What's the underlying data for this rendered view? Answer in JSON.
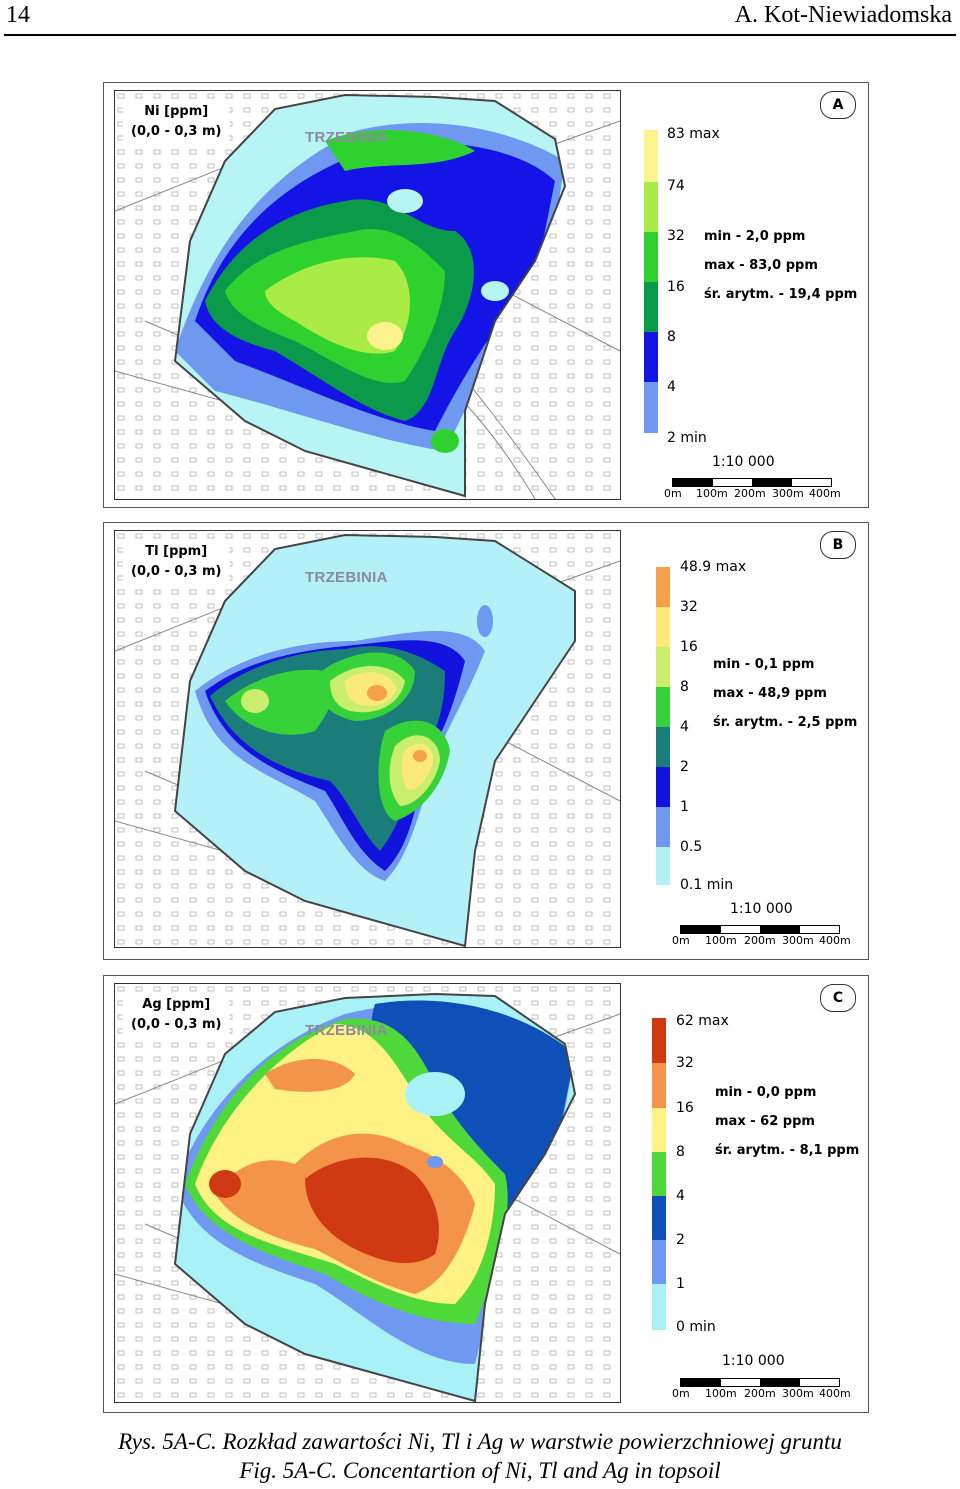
{
  "header": {
    "page_number": "14",
    "author": "A. Kot-Niewiadomska"
  },
  "map_labels": {
    "town": "TRZEBINIA"
  },
  "panels": [
    {
      "id": "A",
      "title_line1": "Ni [ppm]",
      "title_line2": "(0,0 - 0,3 m)",
      "legend": [
        {
          "label": "83 max",
          "color": "#fdf28e"
        },
        {
          "label": "74",
          "color": "#a9ec45"
        },
        {
          "label": "32",
          "color": "#2ed12e"
        },
        {
          "label": "16",
          "color": "#0a9a4a"
        },
        {
          "label": "8",
          "color": "#1414e6"
        },
        {
          "label": "4",
          "color": "#6f98f0"
        },
        {
          "label": "2  min",
          "color": "#b7f5f5"
        }
      ],
      "stats": [
        "min - 2,0 ppm",
        "max - 83,0 ppm",
        "śr. arytm. - 19,4 ppm"
      ],
      "scale_text": "1:10 000",
      "scale_ticks": [
        "0m",
        "100m",
        "200m",
        "300m",
        "400m"
      ]
    },
    {
      "id": "B",
      "title_line1": "Tl [ppm]",
      "title_line2": "(0,0 - 0,3 m)",
      "legend": [
        {
          "label": "48.9 max",
          "color": "#f5a04a"
        },
        {
          "label": "32",
          "color": "#fbe97a"
        },
        {
          "label": "16",
          "color": "#c9ee6e"
        },
        {
          "label": "8",
          "color": "#37d23a"
        },
        {
          "label": "4",
          "color": "#1a7d7a"
        },
        {
          "label": "2",
          "color": "#1212dd"
        },
        {
          "label": "1",
          "color": "#6f98f0"
        },
        {
          "label": "0.5",
          "color": "#b3f0f7"
        },
        {
          "label": "0.1  min",
          "color": "#ffffff"
        }
      ],
      "stats": [
        "min - 0,1 ppm",
        "max - 48,9 ppm",
        "śr. arytm. - 2,5 ppm"
      ],
      "scale_text": "1:10 000",
      "scale_ticks": [
        "0m",
        "100m",
        "200m",
        "300m",
        "400m"
      ]
    },
    {
      "id": "C",
      "title_line1": "Ag [ppm]",
      "title_line2": "(0,0 - 0,3 m)",
      "legend": [
        {
          "label": "62 max",
          "color": "#cf3a12"
        },
        {
          "label": "32",
          "color": "#f4934a"
        },
        {
          "label": "16",
          "color": "#fdf283"
        },
        {
          "label": "8",
          "color": "#4fd83a"
        },
        {
          "label": "4",
          "color": "#0f4fb8"
        },
        {
          "label": "2",
          "color": "#6f98f0"
        },
        {
          "label": "1",
          "color": "#a8f2f7"
        },
        {
          "label": "0  min",
          "color": "#ffffff"
        }
      ],
      "stats": [
        "min - 0,0 ppm",
        "max - 62 ppm",
        "śr. arytm. - 8,1 ppm"
      ],
      "scale_text": "1:10 000",
      "scale_ticks": [
        "0m",
        "100m",
        "200m",
        "300m",
        "400m"
      ]
    }
  ],
  "caption": {
    "line1": "Rys.  5A-C. Rozkład zawartości Ni, Tl i Ag w warstwie powierzchniowej gruntu",
    "line2": "Fig. 5A-C. Concentartion of Ni, Tl and Ag in topsoil"
  }
}
